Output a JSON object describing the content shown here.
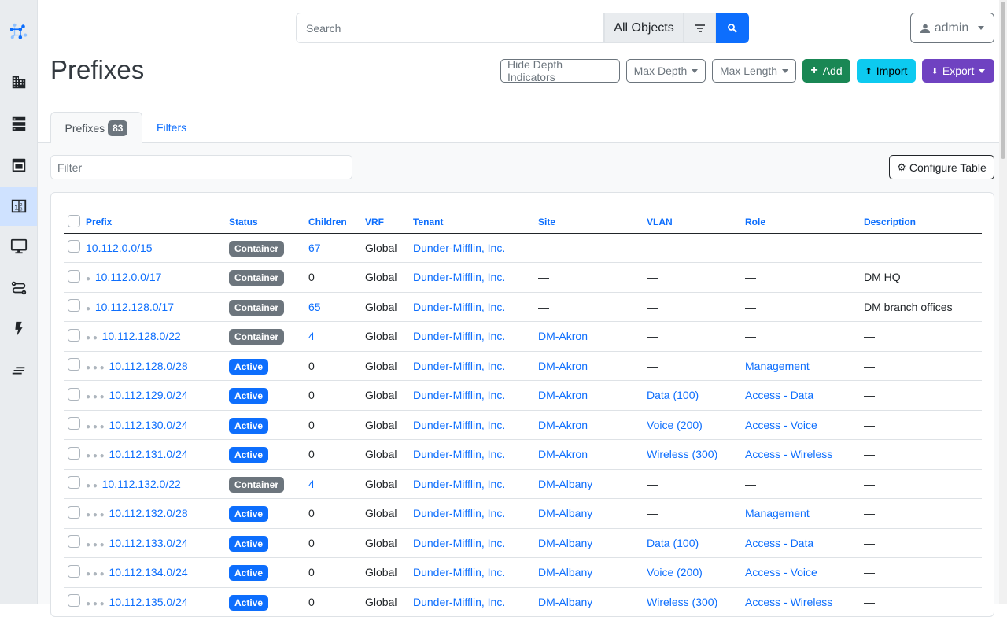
{
  "search": {
    "placeholder": "Search",
    "scope": "All Objects"
  },
  "user": {
    "name": "admin"
  },
  "page": {
    "title": "Prefixes"
  },
  "actions": {
    "hide_depth": "Hide Depth Indicators",
    "max_depth": "Max Depth",
    "max_length": "Max Length",
    "add": "Add",
    "import": "Import",
    "export": "Export"
  },
  "colors": {
    "primary": "#0d6efd",
    "add": "#198754",
    "import": "#0dcaf0",
    "export": "#6f42c1",
    "container": "#6c757d",
    "active": "#0d6efd"
  },
  "tabs": [
    {
      "label": "Prefixes",
      "count": "83"
    },
    {
      "label": "Filters"
    }
  ],
  "filter": {
    "placeholder": "Filter"
  },
  "configure_table": "Configure Table",
  "sidebar": [
    "logo",
    "organization-icon",
    "devices-icon",
    "connections-icon",
    "ipam-icon",
    "virtualization-icon",
    "circuits-icon",
    "power-icon",
    "other-icon"
  ],
  "table": {
    "columns": [
      "Prefix",
      "Status",
      "Children",
      "VRF",
      "Tenant",
      "Site",
      "VLAN",
      "Role",
      "Description"
    ],
    "rows": [
      {
        "depth": 0,
        "prefix": "10.112.0.0/15",
        "status": "Container",
        "children": "67",
        "vrf": "Global",
        "tenant": "Dunder-Mifflin, Inc.",
        "site": "—",
        "vlan": "—",
        "role": "—",
        "description": "—"
      },
      {
        "depth": 1,
        "prefix": "10.112.0.0/17",
        "status": "Container",
        "children": "0",
        "vrf": "Global",
        "tenant": "Dunder-Mifflin, Inc.",
        "site": "—",
        "vlan": "—",
        "role": "—",
        "description": "DM HQ"
      },
      {
        "depth": 1,
        "prefix": "10.112.128.0/17",
        "status": "Container",
        "children": "65",
        "vrf": "Global",
        "tenant": "Dunder-Mifflin, Inc.",
        "site": "—",
        "vlan": "—",
        "role": "—",
        "description": "DM branch offices"
      },
      {
        "depth": 2,
        "prefix": "10.112.128.0/22",
        "status": "Container",
        "children": "4",
        "vrf": "Global",
        "tenant": "Dunder-Mifflin, Inc.",
        "site": "DM-Akron",
        "vlan": "—",
        "role": "—",
        "description": "—"
      },
      {
        "depth": 3,
        "prefix": "10.112.128.0/28",
        "status": "Active",
        "children": "0",
        "vrf": "Global",
        "tenant": "Dunder-Mifflin, Inc.",
        "site": "DM-Akron",
        "vlan": "—",
        "role": "Management",
        "description": "—"
      },
      {
        "depth": 3,
        "prefix": "10.112.129.0/24",
        "status": "Active",
        "children": "0",
        "vrf": "Global",
        "tenant": "Dunder-Mifflin, Inc.",
        "site": "DM-Akron",
        "vlan": "Data (100)",
        "role": "Access - Data",
        "description": "—"
      },
      {
        "depth": 3,
        "prefix": "10.112.130.0/24",
        "status": "Active",
        "children": "0",
        "vrf": "Global",
        "tenant": "Dunder-Mifflin, Inc.",
        "site": "DM-Akron",
        "vlan": "Voice (200)",
        "role": "Access - Voice",
        "description": "—"
      },
      {
        "depth": 3,
        "prefix": "10.112.131.0/24",
        "status": "Active",
        "children": "0",
        "vrf": "Global",
        "tenant": "Dunder-Mifflin, Inc.",
        "site": "DM-Akron",
        "vlan": "Wireless (300)",
        "role": "Access - Wireless",
        "description": "—"
      },
      {
        "depth": 2,
        "prefix": "10.112.132.0/22",
        "status": "Container",
        "children": "4",
        "vrf": "Global",
        "tenant": "Dunder-Mifflin, Inc.",
        "site": "DM-Albany",
        "vlan": "—",
        "role": "—",
        "description": "—"
      },
      {
        "depth": 3,
        "prefix": "10.112.132.0/28",
        "status": "Active",
        "children": "0",
        "vrf": "Global",
        "tenant": "Dunder-Mifflin, Inc.",
        "site": "DM-Albany",
        "vlan": "—",
        "role": "Management",
        "description": "—"
      },
      {
        "depth": 3,
        "prefix": "10.112.133.0/24",
        "status": "Active",
        "children": "0",
        "vrf": "Global",
        "tenant": "Dunder-Mifflin, Inc.",
        "site": "DM-Albany",
        "vlan": "Data (100)",
        "role": "Access - Data",
        "description": "—"
      },
      {
        "depth": 3,
        "prefix": "10.112.134.0/24",
        "status": "Active",
        "children": "0",
        "vrf": "Global",
        "tenant": "Dunder-Mifflin, Inc.",
        "site": "DM-Albany",
        "vlan": "Voice (200)",
        "role": "Access - Voice",
        "description": "—"
      },
      {
        "depth": 3,
        "prefix": "10.112.135.0/24",
        "status": "Active",
        "children": "0",
        "vrf": "Global",
        "tenant": "Dunder-Mifflin, Inc.",
        "site": "DM-Albany",
        "vlan": "Wireless (300)",
        "role": "Access - Wireless",
        "description": "—"
      }
    ]
  }
}
